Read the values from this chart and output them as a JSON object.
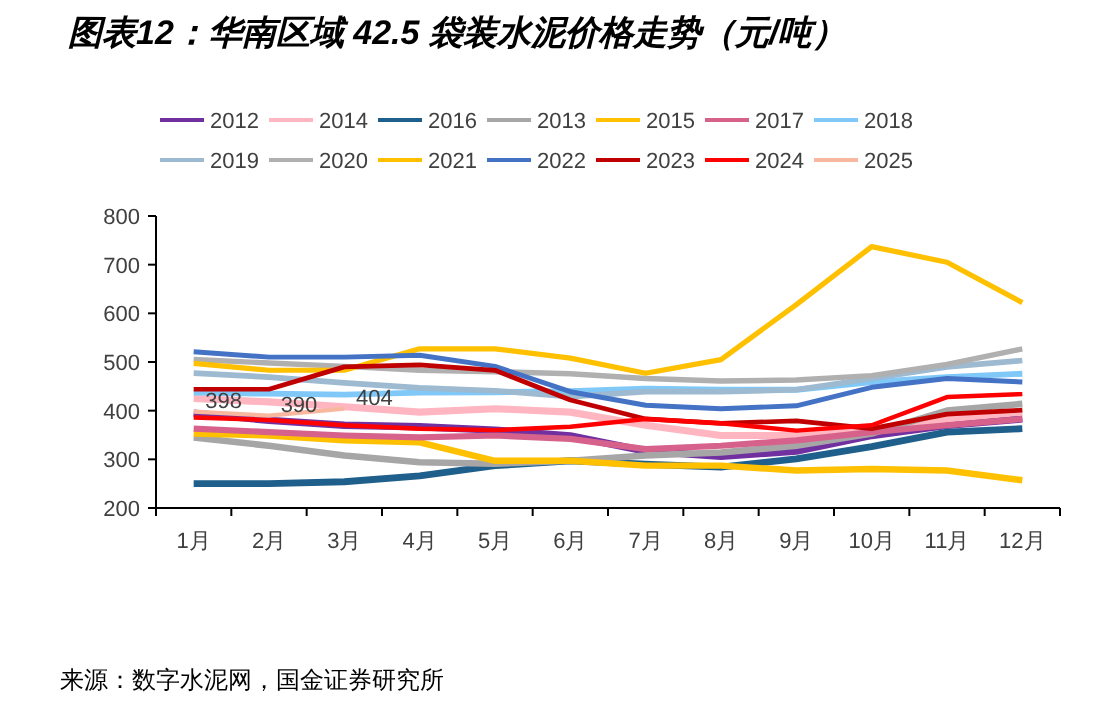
{
  "chart_data": {
    "type": "line",
    "title": "图表12：华南区域 42.5 袋装水泥价格走势（元/吨）",
    "categories": [
      "1月",
      "2月",
      "3月",
      "4月",
      "5月",
      "6月",
      "7月",
      "8月",
      "9月",
      "10月",
      "11月",
      "12月"
    ],
    "ylim": [
      200,
      800
    ],
    "yticks": [
      200,
      300,
      400,
      500,
      600,
      700,
      800
    ],
    "grid": false,
    "legend": "top",
    "marker": "none",
    "line_style": "solid",
    "annotations": [
      "来源：数字水泥网，国金证券研究所"
    ],
    "series": [
      {
        "name": "2012",
        "color": "#7030a0",
        "values": [
          395,
          380,
          370,
          367,
          360,
          348,
          317,
          306,
          317,
          349,
          370,
          383
        ]
      },
      {
        "name": "2014",
        "color": "#ffb6c1",
        "values": [
          425,
          418,
          408,
          397,
          404,
          397,
          370,
          349,
          349,
          359,
          383,
          397
        ]
      },
      {
        "name": "2016",
        "color": "#1f5f8b",
        "values": [
          250,
          250,
          254,
          266,
          287,
          297,
          290,
          284,
          301,
          326,
          356,
          363
        ]
      },
      {
        "name": "2013",
        "color": "#a6a6a6",
        "values": [
          345,
          328,
          308,
          294,
          291,
          297,
          308,
          314,
          328,
          353,
          400,
          414
        ]
      },
      {
        "name": "2015",
        "color": "#ffc000",
        "values": [
          353,
          349,
          339,
          335,
          297,
          297,
          287,
          287,
          277,
          280,
          277,
          257
        ]
      },
      {
        "name": "2017",
        "color": "#d6628c",
        "values": [
          363,
          356,
          349,
          345,
          349,
          342,
          321,
          328,
          339,
          356,
          370,
          383
        ]
      },
      {
        "name": "2018",
        "color": "#7fc8f8",
        "values": [
          437,
          435,
          433,
          437,
          438,
          440,
          445,
          443,
          443,
          459,
          469,
          476
        ]
      },
      {
        "name": "2019",
        "color": "#9dbad0",
        "values": [
          477,
          469,
          457,
          447,
          441,
          429,
          439,
          439,
          443,
          466,
          490,
          503
        ]
      },
      {
        "name": "2020",
        "color": "#b0b0b0",
        "values": [
          505,
          498,
          491,
          483,
          480,
          476,
          466,
          461,
          463,
          472,
          495,
          527
        ]
      },
      {
        "name": "2021",
        "color": "#ffc000",
        "values": [
          497,
          483,
          483,
          527,
          527,
          508,
          477,
          505,
          618,
          737,
          705,
          622
        ]
      },
      {
        "name": "2022",
        "color": "#4472c4",
        "values": [
          521,
          510,
          510,
          514,
          491,
          439,
          411,
          404,
          410,
          448,
          466,
          459
        ]
      },
      {
        "name": "2023",
        "color": "#c00000",
        "values": [
          444,
          444,
          490,
          494,
          483,
          422,
          383,
          374,
          379,
          363,
          393,
          401
        ]
      },
      {
        "name": "2024",
        "color": "#ff0000",
        "values": [
          386,
          381,
          370,
          363,
          360,
          367,
          383,
          374,
          359,
          370,
          428,
          434
        ]
      },
      {
        "name": "2025",
        "color": "#f8b8a0",
        "values": [
          398,
          390,
          404,
          null,
          null,
          null,
          null,
          null,
          null,
          null,
          null,
          null
        ],
        "value_labels": [
          "398",
          "390",
          "404",
          null,
          null,
          null,
          null,
          null,
          null,
          null,
          null,
          null
        ]
      }
    ]
  }
}
